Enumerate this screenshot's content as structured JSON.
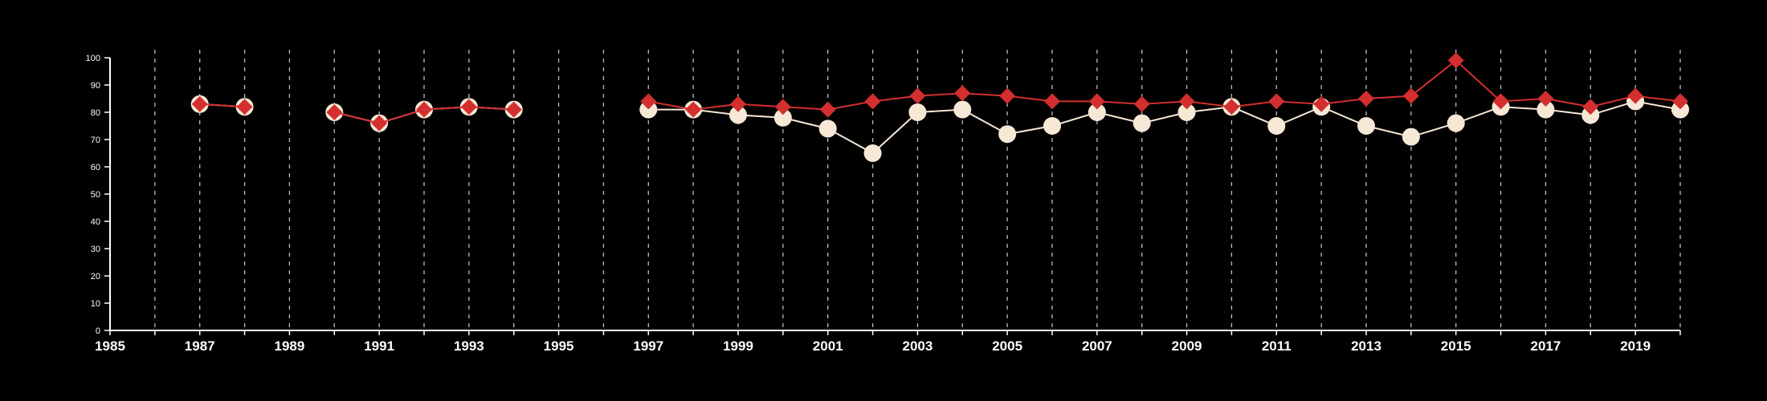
{
  "colors": {
    "background": "#000000",
    "axis": "#ffffff",
    "gridline": "#bbbbbb",
    "series_white": "#f7e8d6",
    "series_red": "#d42f2f"
  },
  "chart_data": {
    "type": "line",
    "title": "",
    "xlabel": "",
    "ylabel": "",
    "xlim": [
      1985,
      2020
    ],
    "ylim": [
      0,
      100
    ],
    "x_ticks": [
      1985,
      1987,
      1989,
      1991,
      1993,
      1995,
      1997,
      1999,
      2001,
      2003,
      2005,
      2007,
      2009,
      2011,
      2013,
      2015,
      2017,
      2019
    ],
    "y_ticks": [
      0,
      10,
      20,
      30,
      40,
      50,
      60,
      70,
      80,
      90,
      100
    ],
    "vertical_gridlines": "dashed, every year 1986-2020",
    "legend": "none",
    "series": [
      {
        "marker": "circle",
        "color": "#f7e8d6",
        "points": [
          [
            1987,
            83
          ],
          [
            1988,
            82
          ],
          [
            1990,
            80
          ],
          [
            1991,
            76
          ],
          [
            1992,
            81
          ],
          [
            1993,
            82
          ],
          [
            1994,
            81
          ],
          [
            1997,
            81
          ],
          [
            1998,
            81
          ],
          [
            1999,
            79
          ],
          [
            2000,
            78
          ],
          [
            2001,
            74
          ],
          [
            2002,
            65
          ],
          [
            2003,
            80
          ],
          [
            2004,
            81
          ],
          [
            2005,
            72
          ],
          [
            2006,
            75
          ],
          [
            2007,
            80
          ],
          [
            2008,
            76
          ],
          [
            2009,
            80
          ],
          [
            2010,
            82
          ],
          [
            2011,
            75
          ],
          [
            2012,
            82
          ],
          [
            2013,
            75
          ],
          [
            2014,
            71
          ],
          [
            2015,
            76
          ],
          [
            2016,
            82
          ],
          [
            2017,
            81
          ],
          [
            2018,
            79
          ],
          [
            2019,
            84
          ],
          [
            2020,
            81
          ]
        ]
      },
      {
        "marker": "diamond",
        "color": "#d42f2f",
        "points": [
          [
            1987,
            83
          ],
          [
            1988,
            82
          ],
          [
            1990,
            80
          ],
          [
            1991,
            76
          ],
          [
            1992,
            81
          ],
          [
            1993,
            82
          ],
          [
            1994,
            81
          ],
          [
            1997,
            84
          ],
          [
            1998,
            81
          ],
          [
            1999,
            83
          ],
          [
            2000,
            82
          ],
          [
            2001,
            81
          ],
          [
            2002,
            84
          ],
          [
            2003,
            86
          ],
          [
            2004,
            87
          ],
          [
            2005,
            86
          ],
          [
            2006,
            84
          ],
          [
            2007,
            84
          ],
          [
            2008,
            83
          ],
          [
            2009,
            84
          ],
          [
            2010,
            82
          ],
          [
            2011,
            84
          ],
          [
            2012,
            83
          ],
          [
            2013,
            85
          ],
          [
            2014,
            86
          ],
          [
            2015,
            99
          ],
          [
            2016,
            84
          ],
          [
            2017,
            85
          ],
          [
            2018,
            82
          ],
          [
            2019,
            86
          ],
          [
            2020,
            84
          ]
        ]
      }
    ]
  }
}
